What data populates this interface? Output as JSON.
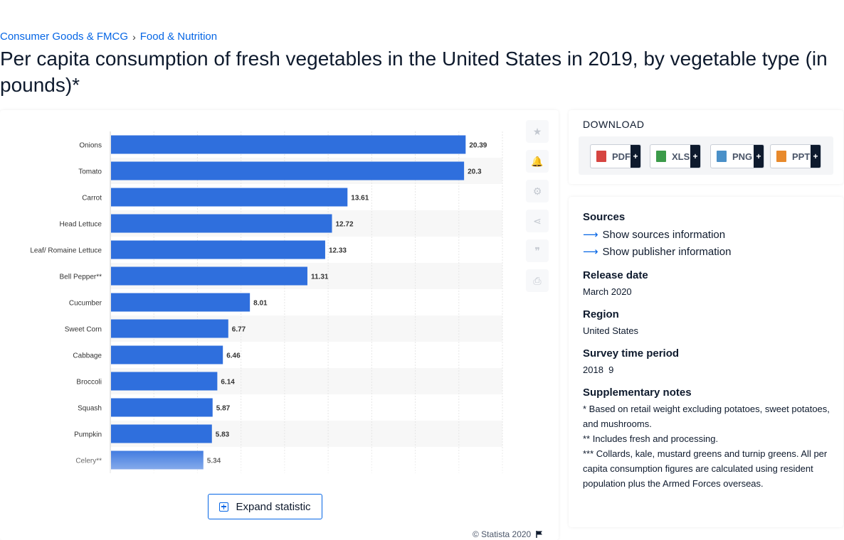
{
  "breadcrumb": {
    "items": [
      "Consumer Goods & FMCG",
      "Food & Nutrition"
    ],
    "separator": "›"
  },
  "page_title": "Per capita consumption of fresh vegetables in the United States in 2019, by vegetable type (in pounds)*",
  "chart_data": {
    "type": "bar",
    "orientation": "horizontal",
    "categories": [
      "Onions",
      "Tomato",
      "Carrot",
      "Head Lettuce",
      "Leaf/ Romaine Lettuce",
      "Bell Pepper**",
      "Cucumber",
      "Sweet Corn",
      "Cabbage",
      "Broccoli",
      "Squash",
      "Pumpkin",
      "Celery**"
    ],
    "values": [
      20.39,
      20.3,
      13.61,
      12.72,
      12.33,
      11.31,
      8.01,
      6.77,
      6.46,
      6.14,
      5.87,
      5.83,
      5.34
    ],
    "value_labels": [
      "20.39",
      "20.3",
      "13.61",
      "12.72",
      "12.33",
      "11.31",
      "8.01",
      "6.77",
      "6.46",
      "6.14",
      "5.87",
      "5.83",
      "5.34"
    ],
    "xlim": [
      0,
      22.5
    ],
    "grid": true,
    "bar_color": "#2f6fdd"
  },
  "tools": [
    {
      "name": "favorite",
      "glyph": "★"
    },
    {
      "name": "notification",
      "glyph": "🔔"
    },
    {
      "name": "settings",
      "glyph": "⚙"
    },
    {
      "name": "share",
      "glyph": "⋖"
    },
    {
      "name": "cite",
      "glyph": "❞"
    },
    {
      "name": "print",
      "glyph": "⎙"
    }
  ],
  "expand_label": "Expand statistic",
  "copyright": "© Statista 2020",
  "download": {
    "title": "DOWNLOAD",
    "buttons": [
      {
        "label": "PDF",
        "color": "#d64541"
      },
      {
        "label": "XLS",
        "color": "#3c9b4a"
      },
      {
        "label": "PNG",
        "color": "#4a90c8"
      },
      {
        "label": "PPT",
        "color": "#e88a2c"
      }
    ],
    "plus": "+"
  },
  "info": {
    "sources_title": "Sources",
    "show_sources": "Show sources information",
    "show_publisher": "Show publisher information",
    "release_title": "Release date",
    "release_value": "March 2020",
    "region_title": "Region",
    "region_value": "United States",
    "survey_title": "Survey time period",
    "survey_value": "2018  9",
    "notes_title": "Supplementary notes",
    "notes": [
      "* Based on retail weight excluding potatoes, sweet potatoes, and mushrooms.",
      "** Includes fresh and processing.",
      "*** Collards, kale, mustard greens and turnip greens. All per capita consumption figures are calculated using resident population plus the Armed Forces overseas."
    ]
  }
}
